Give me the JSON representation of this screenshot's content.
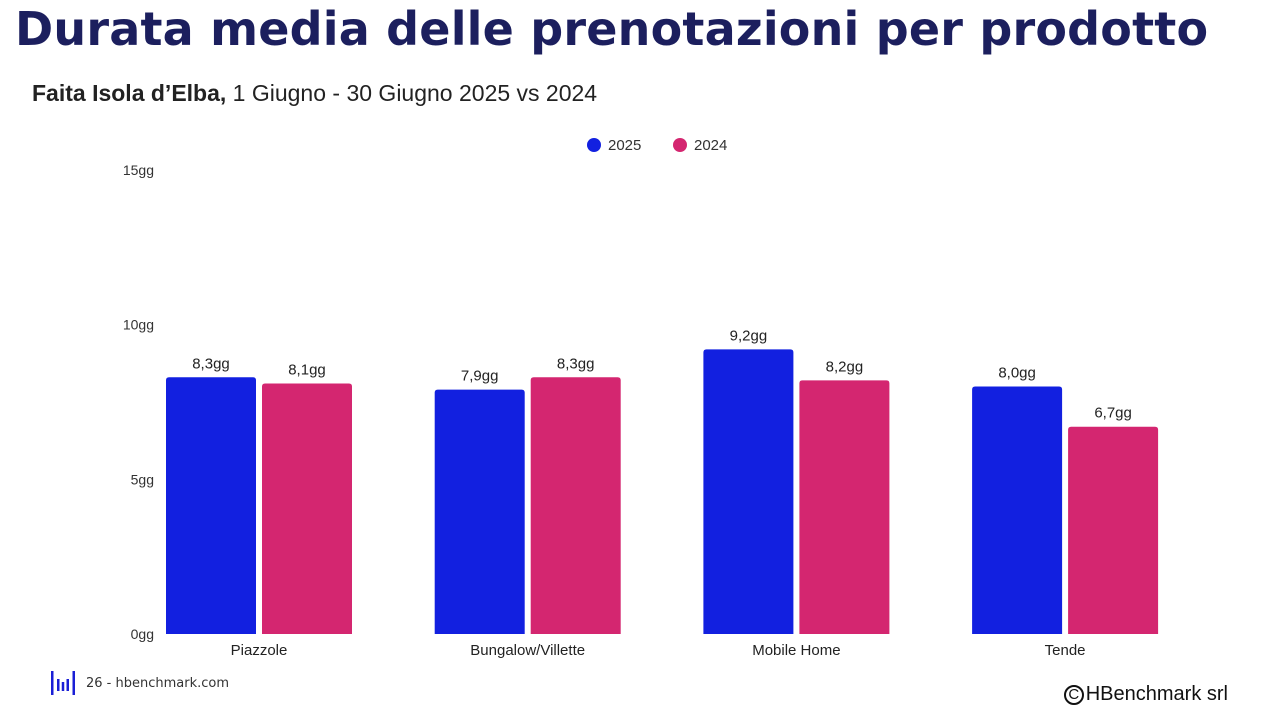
{
  "header": {
    "title": "Durata media delle prenotazioni per prodotto",
    "subtitle_bold": "Faita Isola d’Elba,",
    "subtitle_rest": " 1 Giugno - 30 Giugno 2025 vs 2024"
  },
  "footer": {
    "page_text": "26 - hbenchmark.com",
    "copyright_symbol": "C",
    "copyright_text": "HBenchmark srl"
  },
  "chart_data": {
    "type": "bar",
    "categories": [
      "Piazzole",
      "Bungalow/Villette",
      "Mobile Home",
      "Tende"
    ],
    "series": [
      {
        "name": "2025",
        "color": "#1220e0",
        "values": [
          8.3,
          7.9,
          9.2,
          8.0
        ],
        "labels": [
          "8,3gg",
          "7,9gg",
          "9,2gg",
          "8,0gg"
        ]
      },
      {
        "name": "2024",
        "color": "#d42670",
        "values": [
          8.1,
          8.3,
          8.2,
          6.7
        ],
        "labels": [
          "8,1gg",
          "8,3gg",
          "8,2gg",
          "6,7gg"
        ]
      }
    ],
    "ylim": [
      0,
      15
    ],
    "yticks": [
      0,
      5,
      10,
      15
    ],
    "ytick_labels": [
      "0gg",
      "5gg",
      "10gg",
      "15gg"
    ],
    "grid": false,
    "legend_position": "top-center"
  }
}
